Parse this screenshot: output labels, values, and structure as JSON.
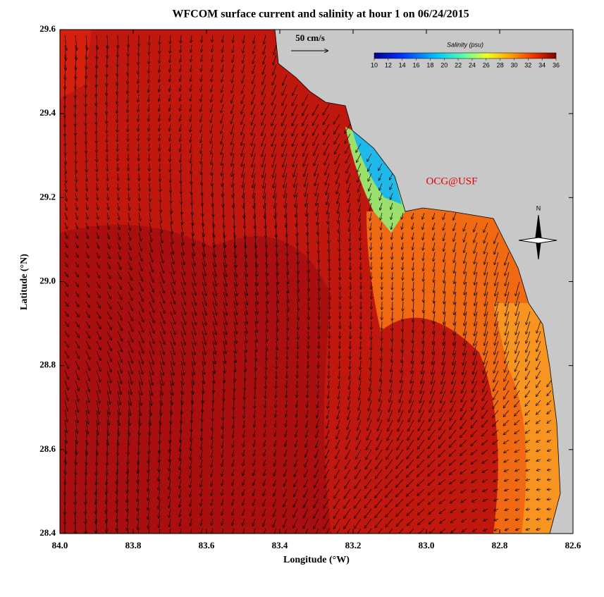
{
  "title": "WFCOM surface current and salinity at hour 1 on 06/24/2015",
  "x_axis": {
    "label": "Longitude (°W)",
    "lim": [
      84.0,
      82.6
    ],
    "ticks": [
      {
        "value": 84.0,
        "label": "84.0"
      },
      {
        "value": 83.8,
        "label": "83.8"
      },
      {
        "value": 83.6,
        "label": "83.6"
      },
      {
        "value": 83.4,
        "label": "83.4"
      },
      {
        "value": 83.2,
        "label": "83.2"
      },
      {
        "value": 83.0,
        "label": "83.0"
      },
      {
        "value": 82.8,
        "label": "82.8"
      },
      {
        "value": 82.6,
        "label": "82.6"
      }
    ]
  },
  "y_axis": {
    "label": "Latitude (°N)",
    "lim": [
      28.4,
      29.6
    ],
    "ticks": [
      {
        "value": 28.4,
        "label": "28.4"
      },
      {
        "value": 28.6,
        "label": "28.6"
      },
      {
        "value": 28.8,
        "label": "28.8"
      },
      {
        "value": 29.0,
        "label": "29.0"
      },
      {
        "value": 29.2,
        "label": "29.2"
      },
      {
        "value": 29.4,
        "label": "29.4"
      },
      {
        "value": 29.6,
        "label": "29.6"
      }
    ]
  },
  "colorbar": {
    "title": "Salinity (psu)",
    "lim": [
      10,
      36
    ],
    "ticks": [
      10,
      12,
      14,
      16,
      18,
      20,
      22,
      24,
      26,
      28,
      30,
      32,
      34,
      36
    ]
  },
  "scale_label": "50 cm/s",
  "credit": "OCG@USF",
  "compass": "N"
}
